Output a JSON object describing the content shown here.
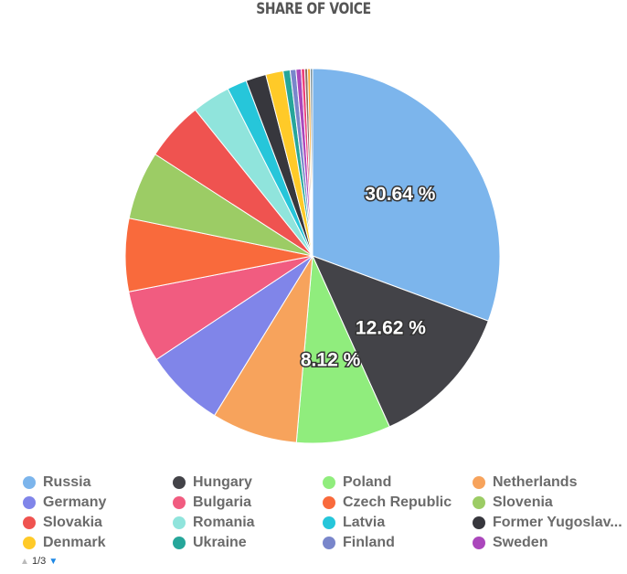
{
  "chart_data": {
    "type": "pie",
    "title": "SHARE OF VOICE",
    "categories": [
      "Russia",
      "Hungary",
      "Poland",
      "Netherlands",
      "Germany",
      "Bulgaria",
      "Czech Republic",
      "Slovenia",
      "Slovakia",
      "Romania",
      "Latvia",
      "Former Yugoslav...",
      "Denmark",
      "Ukraine",
      "Finland",
      "Sweden",
      null,
      null,
      null,
      null
    ],
    "values": [
      30.64,
      12.62,
      8.12,
      7.4,
      6.9,
      6.25,
      6.3,
      5.9,
      5.1,
      3.3,
      1.7,
      1.75,
      1.5,
      0.6,
      0.5,
      0.45,
      0.3,
      0.25,
      0.22,
      0.2
    ],
    "value_labels": [
      "30.64 %",
      "12.62 %",
      "8.12 %",
      null,
      null,
      null,
      null,
      null,
      null,
      null,
      null,
      null,
      null,
      null,
      null,
      null,
      null,
      null,
      null,
      null
    ],
    "colors": [
      "#7cb5ec",
      "#434348",
      "#90ed7d",
      "#f7a35c",
      "#8085e9",
      "#f15c80",
      "#f96a3c",
      "#9ccc65",
      "#ef5350",
      "#90e4dc",
      "#26c6da",
      "#37373d",
      "#ffca28",
      "#26a69a",
      "#7986cb",
      "#ab47bc",
      "#ec407a",
      "#8d6e63",
      "#ffa726",
      "#78909c"
    ],
    "legend_page": "1/3"
  }
}
